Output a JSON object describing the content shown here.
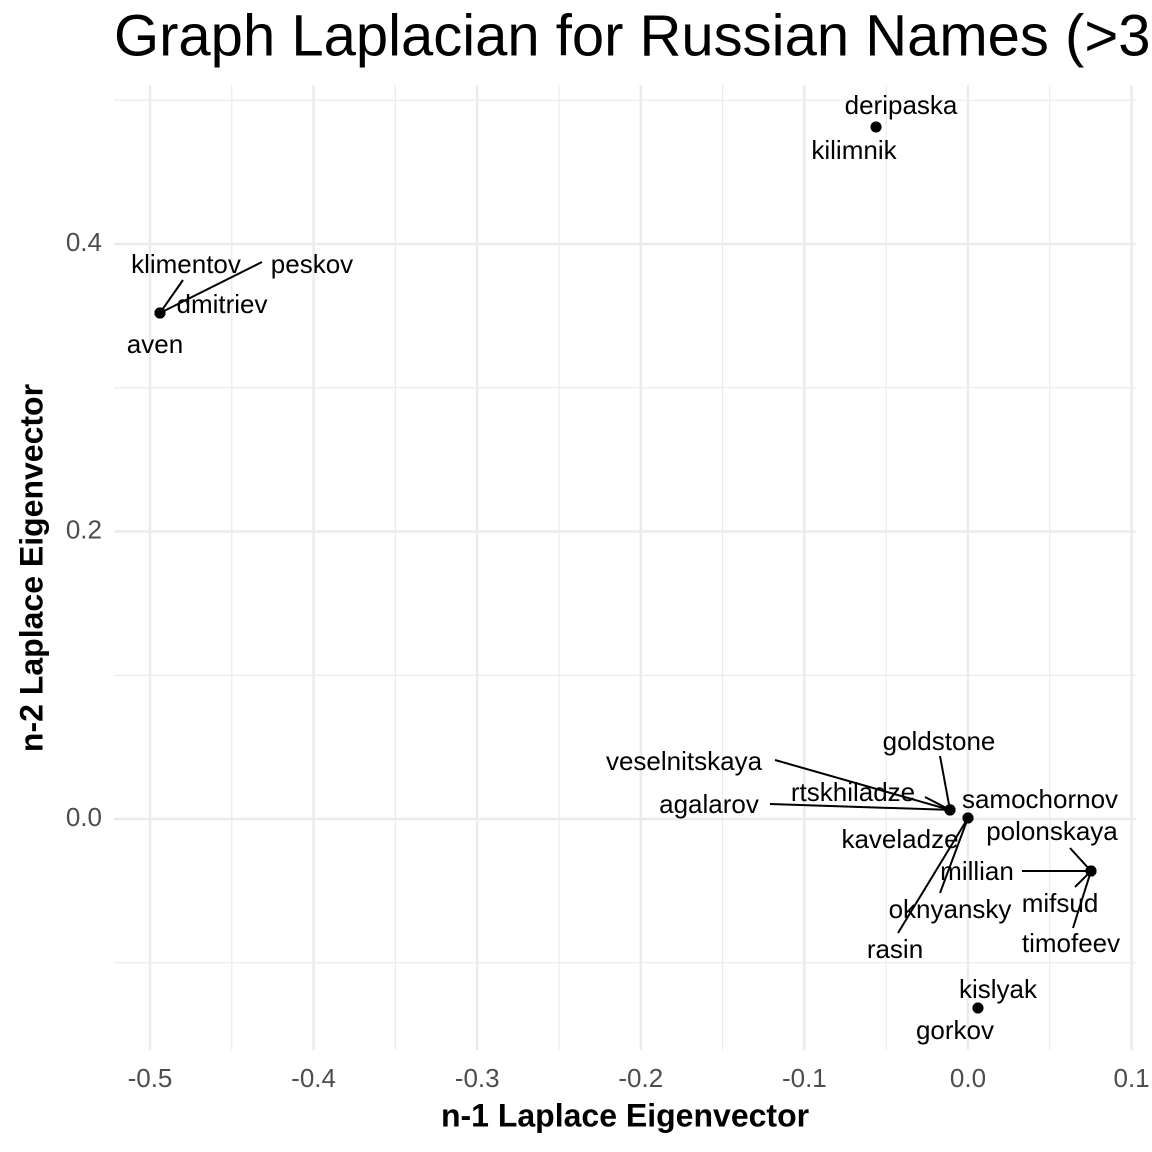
{
  "chart_data": {
    "type": "scatter",
    "title": "Graph Laplacian for Russian Names (>3",
    "x_label": "n-1 Laplace Eigenvector",
    "y_label": "n-2 Laplace Eigenvector",
    "labels": [
      "deripaska",
      "kilimnik",
      "klimentov",
      "peskov",
      "dmitriev",
      "aven",
      "veselnitskaya",
      "agalarov",
      "rtskhiladze",
      "goldstone",
      "kaveladze",
      "samochornov",
      "oknyansky",
      "rasin",
      "polonskaya",
      "millian",
      "mifsud",
      "timofeev",
      "kislyak",
      "gorkov"
    ],
    "x": [
      -0.0562,
      -0.0562,
      -0.4939,
      -0.4939,
      -0.4939,
      -0.4939,
      -0.011,
      -0.011,
      -0.011,
      -0.011,
      -0.011,
      0.0,
      0.0,
      0.0,
      0.0752,
      0.0752,
      0.0752,
      0.0752,
      0.0061,
      0.0061
    ],
    "y": [
      0.4814,
      0.4814,
      0.352,
      0.352,
      0.352,
      0.352,
      0.0063,
      0.0063,
      0.0063,
      0.0063,
      0.0063,
      0.0007,
      0.0007,
      0.0007,
      -0.0362,
      -0.0362,
      -0.0362,
      -0.0362,
      -0.1315,
      -0.1315
    ],
    "color": "#000000",
    "xlim": [
      -0.522,
      0.1027
    ],
    "ylim": [
      -0.1607,
      0.5106
    ],
    "xticks": [
      -0.5,
      -0.4,
      -0.3,
      -0.2,
      -0.1,
      {
        "value": 0,
        "label": "0.0"
      },
      0.1
    ],
    "yticks": [
      {
        "value": 0,
        "label": "0.0"
      },
      0.2,
      0.4
    ],
    "grid": true
  }
}
